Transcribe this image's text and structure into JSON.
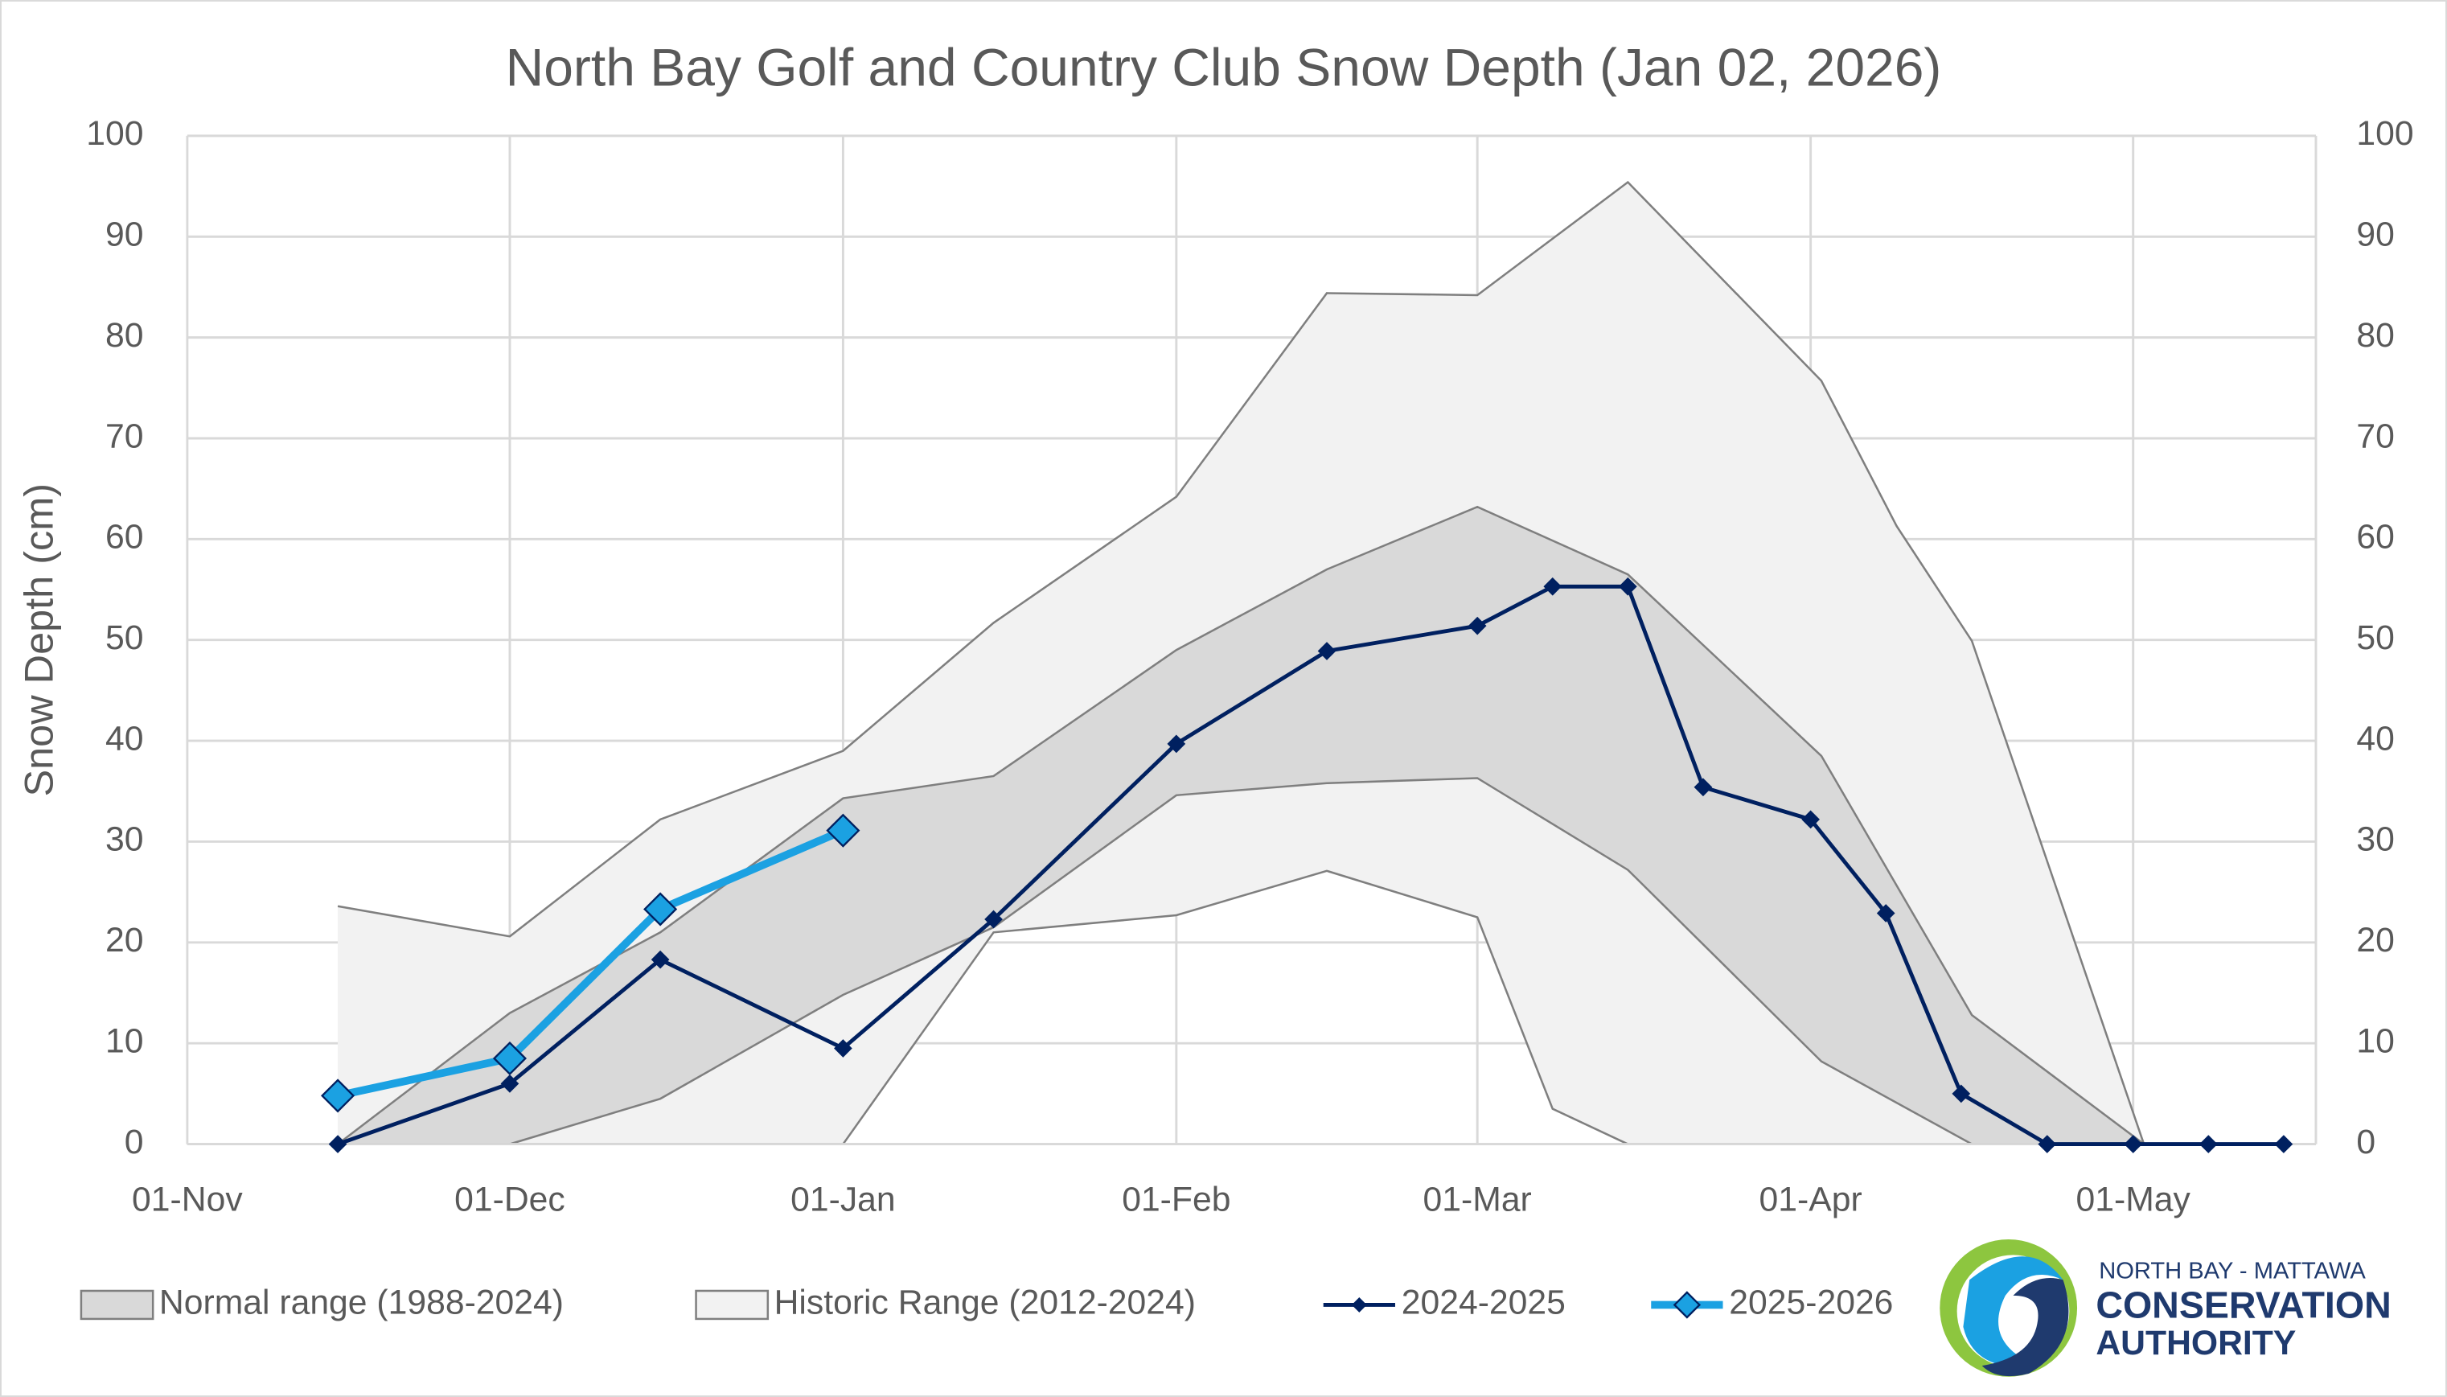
{
  "chart_data": {
    "type": "line",
    "title": "North Bay Golf and Country Club Snow Depth (Jan 02, 2026)",
    "y_label": "Snow Depth (cm)",
    "xlim": [
      0,
      198
    ],
    "xticks": [
      {
        "value": 0,
        "label": "01-Nov"
      },
      {
        "value": 30,
        "label": "01-Dec"
      },
      {
        "value": 61,
        "label": "01-Jan"
      },
      {
        "value": 92,
        "label": "01-Feb"
      },
      {
        "value": 120,
        "label": "01-Mar"
      },
      {
        "value": 151,
        "label": "01-Apr"
      },
      {
        "value": 181,
        "label": "01-May"
      }
    ],
    "ylim": [
      0,
      100
    ],
    "yticks": [
      0,
      10,
      20,
      30,
      40,
      50,
      60,
      70,
      80,
      90,
      100
    ],
    "y2lim": [
      0,
      100
    ],
    "y2ticks": [
      0,
      10,
      20,
      30,
      40,
      50,
      60,
      70,
      80,
      90,
      100
    ],
    "grid": true,
    "legend": "bottom",
    "series": [
      {
        "name": "Normal range (1988-2024)",
        "kind": "band",
        "color": "#d9d9d9",
        "edge_color": "#7f7f7f",
        "x": [
          14,
          30,
          44,
          61,
          75,
          92,
          106,
          120,
          134,
          152,
          166,
          182
        ],
        "low": [
          0,
          0,
          4.5,
          14.8,
          21.5,
          34.6,
          35.8,
          36.3,
          27.2,
          8.2,
          0,
          0
        ],
        "high": [
          0,
          13,
          21,
          34.3,
          36.5,
          49,
          57,
          63.2,
          56.5,
          38.5,
          12.8,
          0
        ]
      },
      {
        "name": "Historic Range (2012-2024)",
        "kind": "band",
        "color": "#f2f2f2",
        "edge_color": "#7f7f7f",
        "x": [
          14,
          30,
          44,
          61,
          75,
          92,
          106,
          120,
          127,
          134,
          152,
          159,
          166,
          182
        ],
        "low": [
          0,
          0,
          0,
          0,
          21,
          22.7,
          27.1,
          22.5,
          3.5,
          0,
          0,
          0,
          0,
          0
        ],
        "high": [
          23.6,
          20.6,
          32.2,
          39,
          51.7,
          64.2,
          84.4,
          84.2,
          89.8,
          95.4,
          75.7,
          61.3,
          49.9,
          0
        ]
      },
      {
        "name": "2024-2025",
        "kind": "line",
        "color": "#002060",
        "marker_color": "#002060",
        "line_width": 2.5,
        "marker_size": 5,
        "x": [
          14,
          30,
          44,
          61,
          75,
          92,
          106,
          120,
          127,
          134,
          141,
          151,
          158,
          165,
          173,
          181,
          188,
          195
        ],
        "values": [
          0,
          6,
          18.3,
          9.5,
          22.3,
          39.7,
          48.9,
          51.4,
          55.3,
          55.3,
          35.4,
          32.2,
          22.9,
          5,
          0,
          0,
          0,
          0
        ]
      },
      {
        "name": "2025-2026",
        "kind": "line",
        "color": "#1ba1e2",
        "marker_color": "#1ba1e2",
        "line_width": 5,
        "marker_size": 10,
        "x": [
          14,
          30,
          44,
          61
        ],
        "values": [
          4.8,
          8.5,
          23.3,
          31.1
        ]
      }
    ]
  },
  "logo": {
    "line1": "NORTH BAY - MATTAWA",
    "line2": "CONSERVATION",
    "line3": "AUTHORITY"
  }
}
